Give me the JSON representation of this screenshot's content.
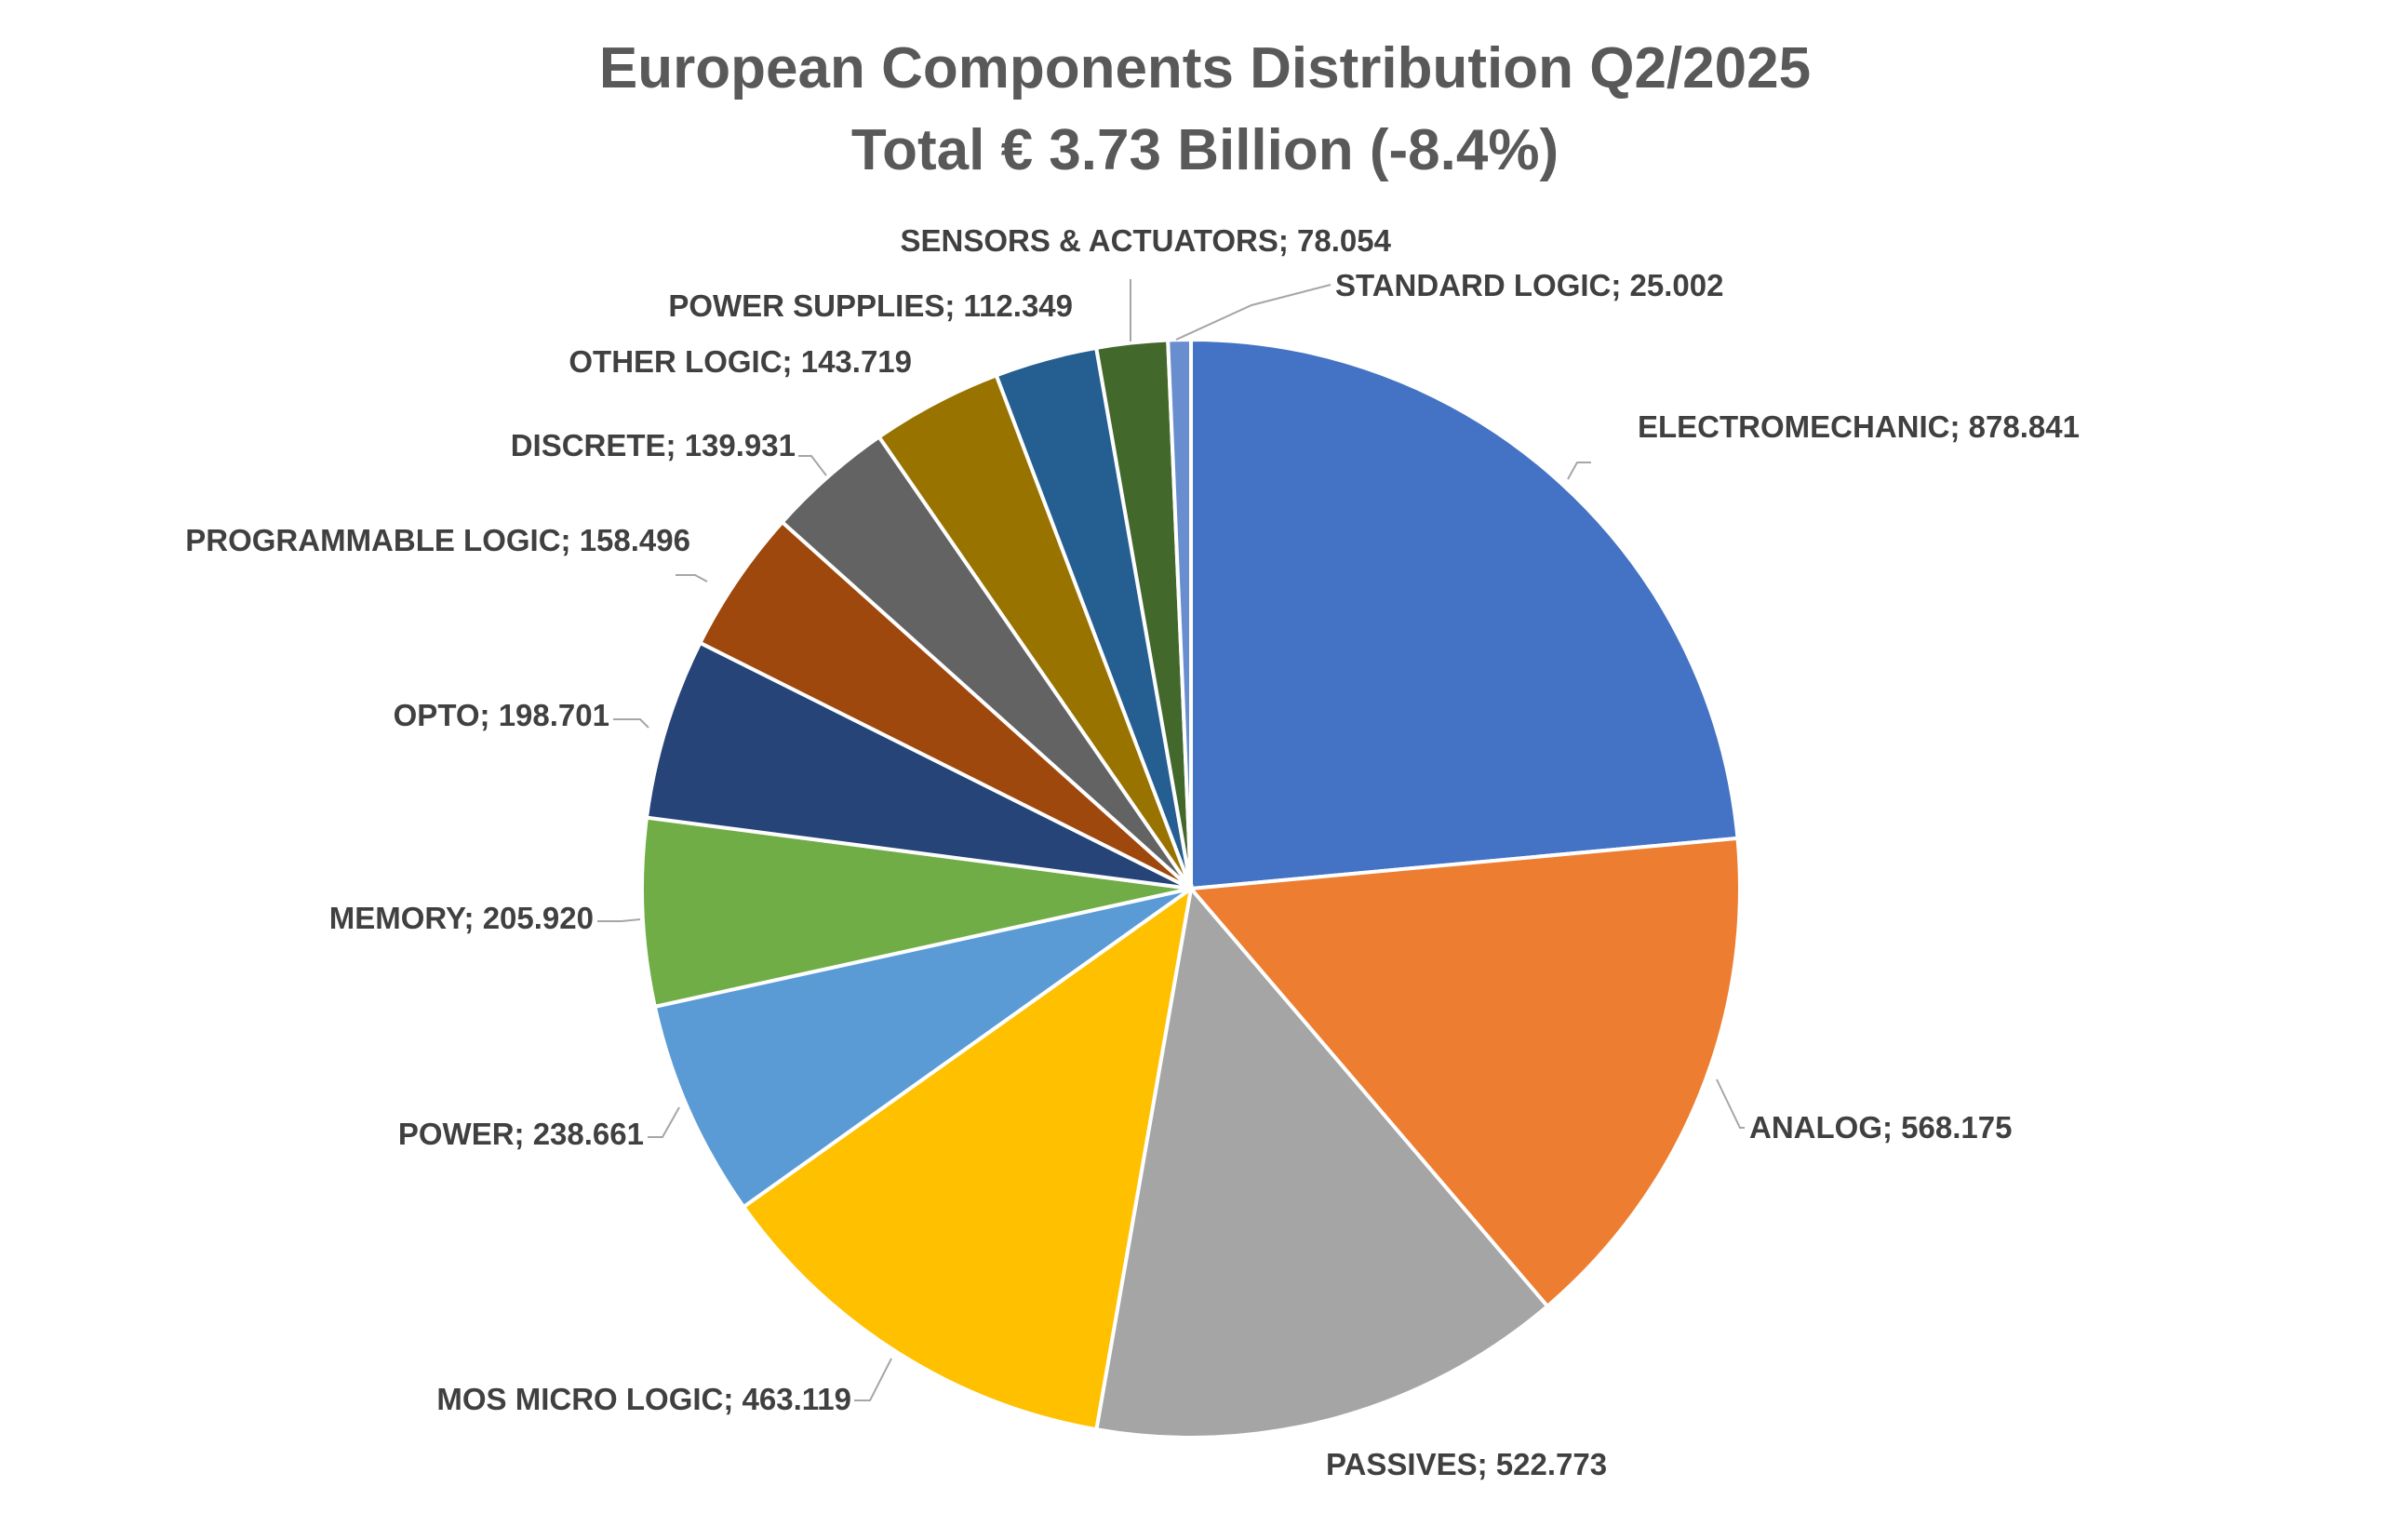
{
  "chart_data": {
    "type": "pie",
    "title": "European Components Distribution Q2/2025",
    "subtitle": "Total € 3.73 Billion (-8.4%)",
    "slices": [
      {
        "label": "ELECTROMECHANIC",
        "sep": "; ",
        "value": 878.841,
        "display": "878.841",
        "color": "#4472C4"
      },
      {
        "label": "ANALOG",
        "sep": ";  ",
        "value": 568.175,
        "display": "568.175",
        "color": "#ED7D31"
      },
      {
        "label": "PASSIVES",
        "sep": "; ",
        "value": 522.773,
        "display": "522.773",
        "color": "#A5A5A5"
      },
      {
        "label": "MOS MICRO LOGIC",
        "sep": "; ",
        "value": 463.119,
        "display": "463.119",
        "color": "#FFC000"
      },
      {
        "label": "POWER",
        "sep": "; ",
        "value": 238.661,
        "display": "238.661",
        "color": "#5B9BD5"
      },
      {
        "label": "MEMORY",
        "sep": "; ",
        "value": 205.92,
        "display": "205.920",
        "color": "#70AD47"
      },
      {
        "label": "OPTO",
        "sep": "; ",
        "value": 198.701,
        "display": "198.701",
        "color": "#264478"
      },
      {
        "label": "PROGRAMMABLE LOGIC",
        "sep": "; ",
        "value": 158.496,
        "display": "158.496",
        "color": "#9E480E"
      },
      {
        "label": "DISCRETE",
        "sep": "; ",
        "value": 139.931,
        "display": "139.931",
        "color": "#636363"
      },
      {
        "label": "OTHER LOGIC",
        "sep": "; ",
        "value": 143.719,
        "display": "143.719",
        "color": "#997300"
      },
      {
        "label": "POWER SUPPLIES",
        "sep": "; ",
        "value": 112.349,
        "display": "112.349",
        "color": "#255E91"
      },
      {
        "label": "SENSORS & ACTUATORS",
        "sep": "; ",
        "value": 78.054,
        "display": "78.054",
        "color": "#43682B"
      },
      {
        "label": "STANDARD LOGIC",
        "sep": "; ",
        "value": 25.002,
        "display": "25.002",
        "color": "#698ED0"
      }
    ],
    "legend": "none"
  }
}
